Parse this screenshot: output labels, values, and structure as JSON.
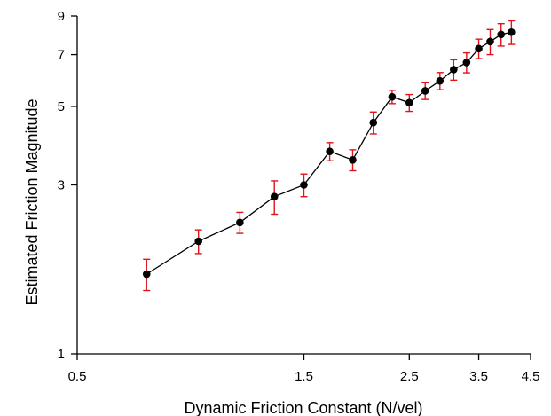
{
  "chart_data": {
    "type": "scatter",
    "xlabel": "Dynamic Friction Constant (N/vel)",
    "ylabel": "Estimated Friction Magnitude",
    "xscale": "log",
    "yscale": "log",
    "xlim": [
      0.5,
      4.5
    ],
    "ylim": [
      1,
      9
    ],
    "xticks": [
      "0.5",
      "1.5",
      "2.5",
      "3.5",
      "4.5"
    ],
    "xtick_values": [
      0.5,
      1.5,
      2.5,
      3.5,
      4.5
    ],
    "yticks": [
      "1",
      "3",
      "5",
      "7",
      "9"
    ],
    "ytick_values": [
      1,
      3,
      5,
      7,
      9
    ],
    "grid": false,
    "legend": "none",
    "series": [
      {
        "values_x": [
          0.7,
          0.9,
          1.1,
          1.3,
          1.5,
          1.7,
          1.9,
          2.1,
          2.3,
          2.5,
          2.7,
          2.9,
          3.1,
          3.3,
          3.5,
          3.7,
          3.9,
          4.1
        ],
        "values_y": [
          1.68,
          2.08,
          2.35,
          2.78,
          3.0,
          3.73,
          3.53,
          4.5,
          5.32,
          5.12,
          5.53,
          5.9,
          6.35,
          6.65,
          7.28,
          7.62,
          7.98,
          8.1
        ],
        "err": [
          0.17,
          0.16,
          0.16,
          0.3,
          0.22,
          0.22,
          0.24,
          0.32,
          0.23,
          0.28,
          0.3,
          0.33,
          0.42,
          0.43,
          0.46,
          0.62,
          0.58,
          0.62
        ]
      }
    ],
    "colors": {
      "marker": "#000000",
      "line": "#000000",
      "errorbar": "#e0131b",
      "axis": "#000000"
    }
  }
}
